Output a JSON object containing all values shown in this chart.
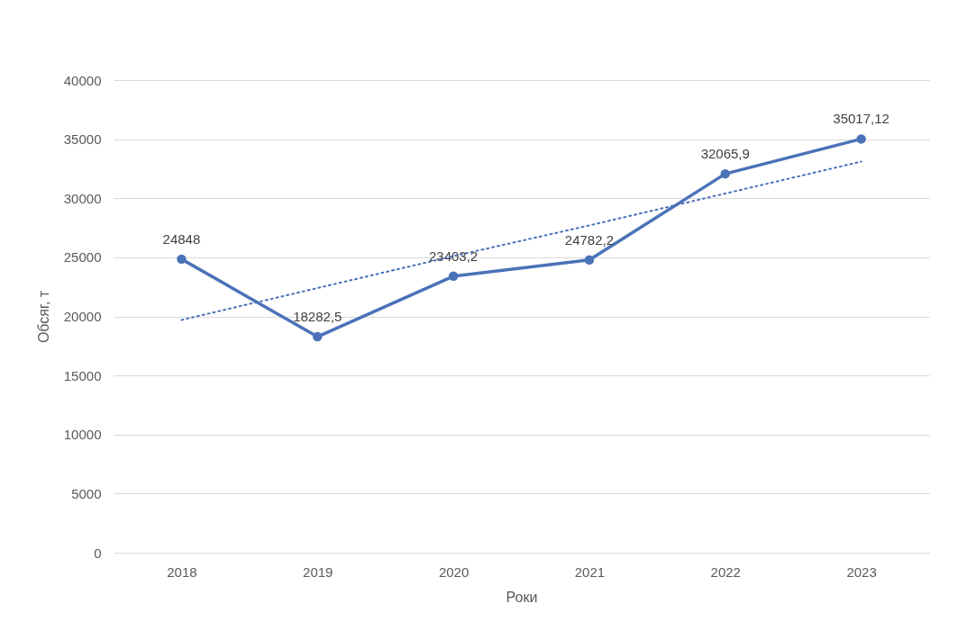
{
  "chart_data": {
    "type": "line",
    "xlabel": "Роки",
    "ylabel": "Обсяг, т",
    "categories": [
      "2018",
      "2019",
      "2020",
      "2021",
      "2022",
      "2023"
    ],
    "ylim": [
      0,
      40000
    ],
    "yticks": [
      0,
      5000,
      10000,
      15000,
      20000,
      25000,
      30000,
      35000,
      40000
    ],
    "grid": "y",
    "marker": "circle",
    "series": [
      {
        "color": "#4a72b8",
        "values": [
          24848,
          18282.5,
          23403.2,
          24782.2,
          32065.9,
          35017.12
        ],
        "value_labels": [
          "24848",
          "18282,5",
          "23403,2",
          "24782,2",
          "32065,9",
          "35017,12"
        ]
      },
      {
        "type": "line",
        "color": "#4a72b8",
        "line_style": "dotted",
        "marker": "none",
        "values": [
          19700,
          22400,
          25100,
          27700,
          30400,
          33100
        ]
      }
    ]
  }
}
